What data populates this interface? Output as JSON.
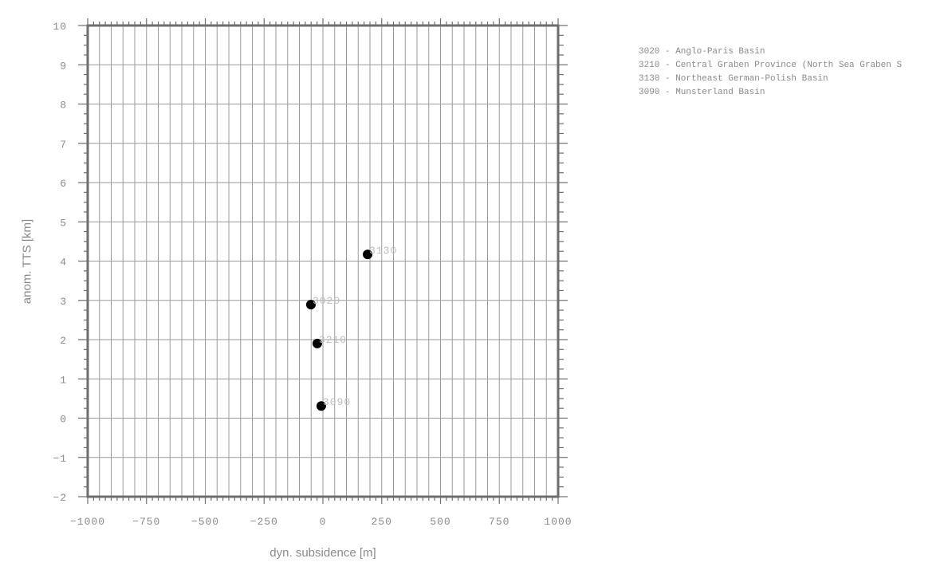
{
  "chart_data": {
    "type": "scatter",
    "title": "",
    "xlabel": "dyn. subsidence [m]",
    "ylabel": "anom. TTS [km]",
    "xlim": [
      -1000,
      1000
    ],
    "ylim": [
      -2,
      10
    ],
    "xticks": [
      -1000,
      -750,
      -500,
      -250,
      0,
      250,
      500,
      750,
      1000
    ],
    "xtick_labels": [
      "−1000",
      "−750",
      "−500",
      "−250",
      "0",
      "250",
      "500",
      "750",
      "1000"
    ],
    "yticks": [
      -2,
      -1,
      0,
      1,
      2,
      3,
      4,
      5,
      6,
      7,
      8,
      9,
      10
    ],
    "ytick_labels": [
      "−2",
      "−1",
      "0",
      "1",
      "2",
      "3",
      "4",
      "5",
      "6",
      "7",
      "8",
      "9",
      "10"
    ],
    "grid": true,
    "x_grid_step": 50,
    "legend_position": "right",
    "points": [
      {
        "label": "3020",
        "x": -51,
        "y": 2.89
      },
      {
        "label": "3210",
        "x": -24,
        "y": 1.9
      },
      {
        "label": "3130",
        "x": 190,
        "y": 4.17
      },
      {
        "label": "3090",
        "x": -7,
        "y": 0.31
      }
    ],
    "legend": [
      "3020 - Anglo-Paris Basin",
      "3210 - Central Graben Province (North Sea Graben S",
      "3130 - Northeast German-Polish Basin",
      "3090 - Munsterland Basin"
    ]
  },
  "colors": {
    "frame": "#6e6e6e",
    "grid": "#9a9a9a",
    "text": "#8a8a8a",
    "point": "#000000",
    "point_label": "#bdbdbd"
  }
}
